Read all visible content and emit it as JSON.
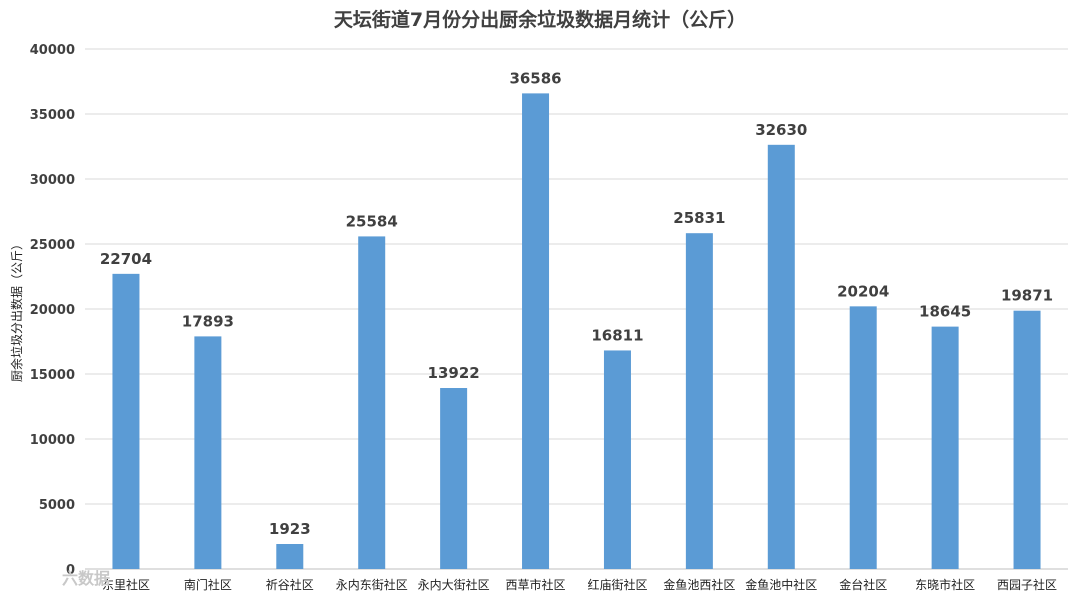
{
  "chart_data": {
    "type": "bar",
    "title": "天坛街道7月份分出厨余垃圾数据月统计（公斤）",
    "ylabel": "厨余垃圾分出数据（公斤）",
    "xlabel": "",
    "ylim": [
      0,
      40000
    ],
    "yticks": [
      0,
      5000,
      10000,
      15000,
      20000,
      25000,
      30000,
      35000,
      40000
    ],
    "grid": true,
    "legend": "none",
    "bar_color": "#5b9bd5",
    "categories": [
      "东里社区",
      "南门社区",
      "祈谷社区",
      "永内东街社区",
      "永内大街社区",
      "西草市社区",
      "红庙街社区",
      "金鱼池西社区",
      "金鱼池中社区",
      "金台社区",
      "东晓市社区",
      "西园子社区"
    ],
    "values": [
      22704,
      17893,
      1923,
      25584,
      13922,
      36586,
      16811,
      25831,
      32630,
      20204,
      18645,
      19871
    ]
  },
  "watermark": "六数据"
}
